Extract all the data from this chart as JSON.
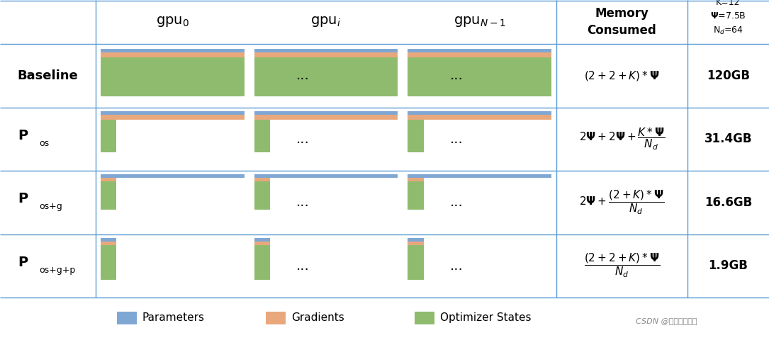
{
  "bg_color": "#ffffff",
  "grid_color": "#5b9bd5",
  "row_labels": [
    "Baseline",
    "P_os",
    "P_os+g",
    "P_os+g+p"
  ],
  "gpu_labels": [
    "gpu_0",
    "gpu_i",
    "gpu_N-1"
  ],
  "color_params": "#7fa7d3",
  "color_grads": "#e8a87c",
  "color_optim": "#8fbb6e",
  "memory_values": [
    "120GB",
    "31.4GB",
    "16.6GB",
    "1.9GB"
  ],
  "legend_items": [
    "Parameters",
    "Gradients",
    "Optimizer States"
  ],
  "watermark": "CSDN @没有姓的梗轩"
}
